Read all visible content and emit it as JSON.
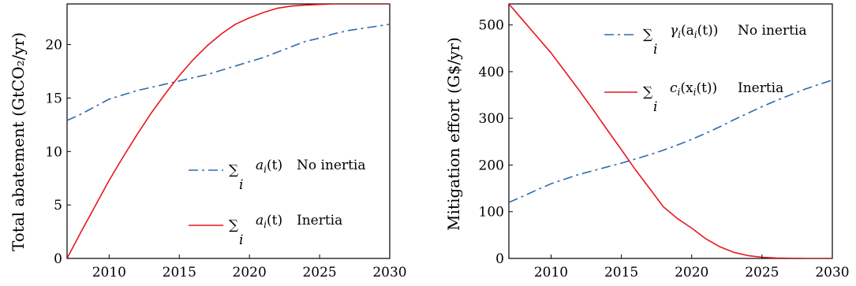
{
  "chart_data": [
    {
      "type": "line",
      "xlabel": "",
      "ylabel": "Total abatement (GtCO₂/yr)",
      "xlim": [
        2007,
        2030
      ],
      "ylim": [
        0,
        23.8
      ],
      "xticks": [
        2010,
        2015,
        2020,
        2025,
        2030
      ],
      "yticks": [
        0,
        5,
        10,
        15,
        20
      ],
      "legend_placement": "lower-right",
      "series": [
        {
          "name": "∑ᵢ aᵢ(t) No inertia",
          "legend": {
            "sum_index": "i",
            "func": "a",
            "sub": "i",
            "arg": "(t)",
            "text": "No inertia"
          },
          "style": "dashdot",
          "color": "#2b6aad",
          "x": [
            2007,
            2008,
            2009,
            2010,
            2011,
            2012,
            2013,
            2014,
            2015,
            2016,
            2017,
            2018,
            2019,
            2020,
            2021,
            2022,
            2023,
            2024,
            2025,
            2026,
            2027,
            2028,
            2029,
            2030
          ],
          "y": [
            12.9,
            13.5,
            14.2,
            14.9,
            15.3,
            15.7,
            16.0,
            16.3,
            16.6,
            16.9,
            17.2,
            17.6,
            18.0,
            18.4,
            18.8,
            19.3,
            19.8,
            20.3,
            20.6,
            21.0,
            21.3,
            21.5,
            21.7,
            21.9
          ]
        },
        {
          "name": "∑ᵢ aᵢ(t) Inertia",
          "legend": {
            "sum_index": "i",
            "func": "a",
            "sub": "i",
            "arg": "(t)",
            "text": "Inertia"
          },
          "style": "solid",
          "color": "#e8171d",
          "x": [
            2007,
            2008,
            2009,
            2010,
            2011,
            2012,
            2013,
            2014,
            2015,
            2016,
            2017,
            2018,
            2019,
            2020,
            2021,
            2022,
            2023,
            2024,
            2025,
            2026,
            2027,
            2028,
            2029,
            2030
          ],
          "y": [
            0.0,
            2.5,
            4.9,
            7.3,
            9.5,
            11.6,
            13.6,
            15.4,
            17.1,
            18.6,
            19.9,
            21.0,
            21.9,
            22.5,
            23.0,
            23.4,
            23.6,
            23.7,
            23.75,
            23.8,
            23.8,
            23.8,
            23.8,
            23.8
          ]
        }
      ]
    },
    {
      "type": "line",
      "xlabel": "",
      "ylabel": "Mitigation effort (G$/yr)",
      "xlim": [
        2007,
        2030
      ],
      "ylim": [
        0,
        545
      ],
      "xticks": [
        2010,
        2015,
        2020,
        2025,
        2030
      ],
      "yticks": [
        0,
        100,
        200,
        300,
        400,
        500
      ],
      "legend_placement": "top-center",
      "series": [
        {
          "name": "∑ᵢ γᵢ(aᵢ(t)) No inertia",
          "legend": {
            "sum_index": "i",
            "func": "γ",
            "sub": "i",
            "arg": "(a",
            "arg_sub": "i",
            "arg_tail": "(t))",
            "text": "No inertia"
          },
          "style": "dashdot",
          "color": "#2b6aad",
          "x": [
            2007,
            2008,
            2009,
            2010,
            2011,
            2012,
            2013,
            2014,
            2015,
            2016,
            2017,
            2018,
            2019,
            2020,
            2021,
            2022,
            2023,
            2024,
            2025,
            2026,
            2027,
            2028,
            2029,
            2030
          ],
          "y": [
            120,
            133,
            147,
            160,
            170,
            180,
            188,
            196,
            204,
            213,
            222,
            232,
            243,
            255,
            268,
            282,
            297,
            311,
            325,
            338,
            350,
            362,
            372,
            382
          ]
        },
        {
          "name": "∑ᵢ cᵢ(xᵢ(t)) Inertia",
          "legend": {
            "sum_index": "i",
            "func": "c",
            "sub": "i",
            "arg": "(x",
            "arg_sub": "i",
            "arg_tail": "(t))",
            "text": "Inertia"
          },
          "style": "solid",
          "color": "#e8171d",
          "x": [
            2007,
            2008,
            2009,
            2010,
            2011,
            2012,
            2013,
            2014,
            2015,
            2016,
            2017,
            2018,
            2019,
            2020,
            2021,
            2022,
            2023,
            2024,
            2025,
            2026,
            2027,
            2028,
            2029,
            2030
          ],
          "y": [
            545,
            510,
            475,
            440,
            400,
            360,
            318,
            275,
            233,
            190,
            150,
            110,
            85,
            65,
            42,
            25,
            13,
            6,
            2.5,
            1,
            0.3,
            0,
            0,
            0
          ]
        }
      ]
    }
  ]
}
